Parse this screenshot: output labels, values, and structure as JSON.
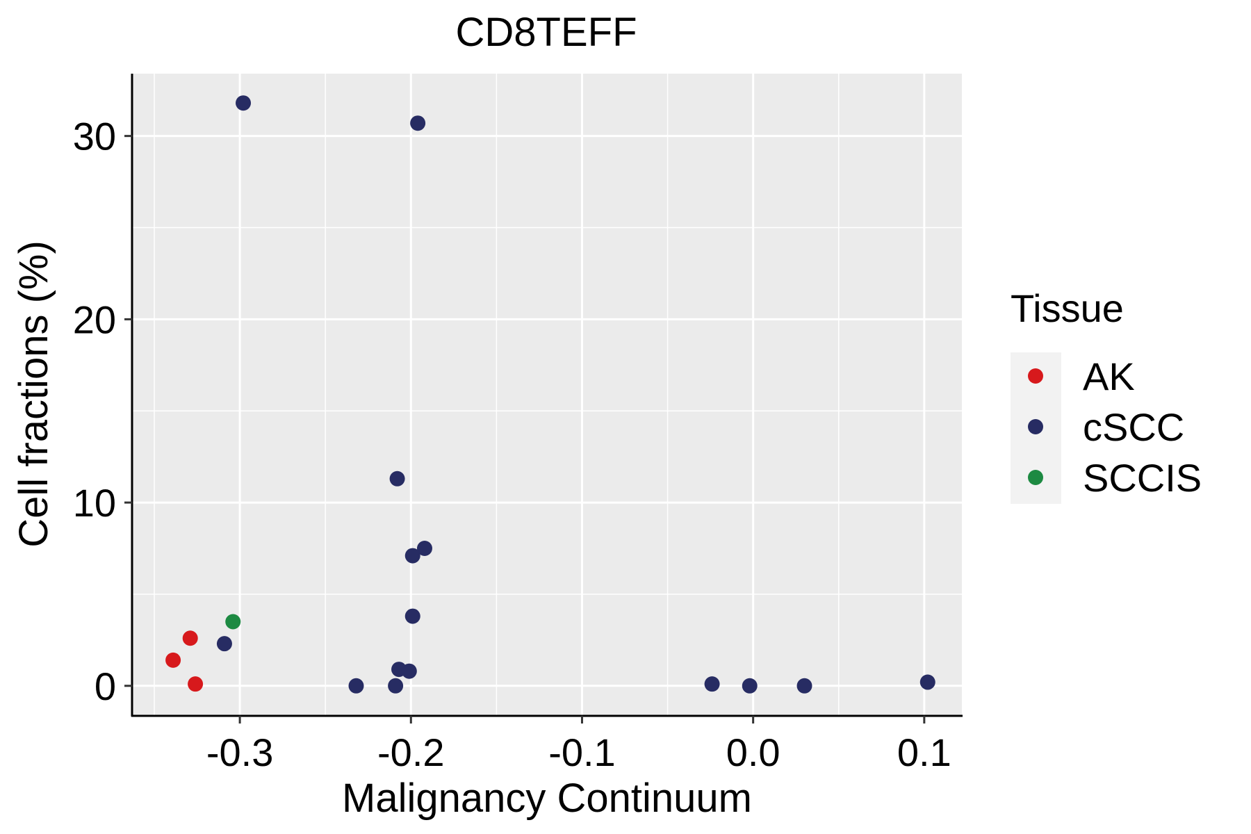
{
  "chart_data": {
    "type": "scatter",
    "title": "CD8TEFF",
    "xlabel": "Malignancy Continuum",
    "ylabel": "Cell fractions (%)",
    "xlim": [
      -0.363,
      0.122
    ],
    "ylim": [
      -1.6,
      33.4
    ],
    "xticks": [
      -0.3,
      -0.2,
      -0.1,
      0.0,
      0.1
    ],
    "xtick_labels": [
      "-0.3",
      "-0.2",
      "-0.1",
      "0.0",
      "0.1"
    ],
    "yticks": [
      0,
      10,
      20,
      30
    ],
    "ytick_labels": [
      "0",
      "10",
      "20",
      "30"
    ],
    "grid": true,
    "legend": {
      "title": "Tissue",
      "position": "right",
      "entries": [
        {
          "label": "AK",
          "color": "#d7191c"
        },
        {
          "label": "cSCC",
          "color": "#272c63"
        },
        {
          "label": "SCCIS",
          "color": "#1d8a42"
        }
      ]
    },
    "series": [
      {
        "name": "AK",
        "color": "#d7191c",
        "points": [
          {
            "x": -0.339,
            "y": 1.4
          },
          {
            "x": -0.329,
            "y": 2.6
          },
          {
            "x": -0.326,
            "y": 0.1
          }
        ]
      },
      {
        "name": "cSCC",
        "color": "#272c63",
        "points": [
          {
            "x": -0.298,
            "y": 31.8
          },
          {
            "x": -0.196,
            "y": 30.7
          },
          {
            "x": -0.208,
            "y": 11.3
          },
          {
            "x": -0.192,
            "y": 7.5
          },
          {
            "x": -0.199,
            "y": 7.1
          },
          {
            "x": -0.199,
            "y": 3.8
          },
          {
            "x": -0.309,
            "y": 2.3
          },
          {
            "x": -0.207,
            "y": 0.9
          },
          {
            "x": -0.201,
            "y": 0.8
          },
          {
            "x": -0.232,
            "y": 0.0
          },
          {
            "x": -0.209,
            "y": 0.0
          },
          {
            "x": -0.024,
            "y": 0.1
          },
          {
            "x": -0.002,
            "y": 0.0
          },
          {
            "x": 0.03,
            "y": 0.0
          },
          {
            "x": 0.102,
            "y": 0.2
          }
        ]
      },
      {
        "name": "SCCIS",
        "color": "#1d8a42",
        "points": [
          {
            "x": -0.304,
            "y": 3.5
          }
        ]
      }
    ]
  }
}
